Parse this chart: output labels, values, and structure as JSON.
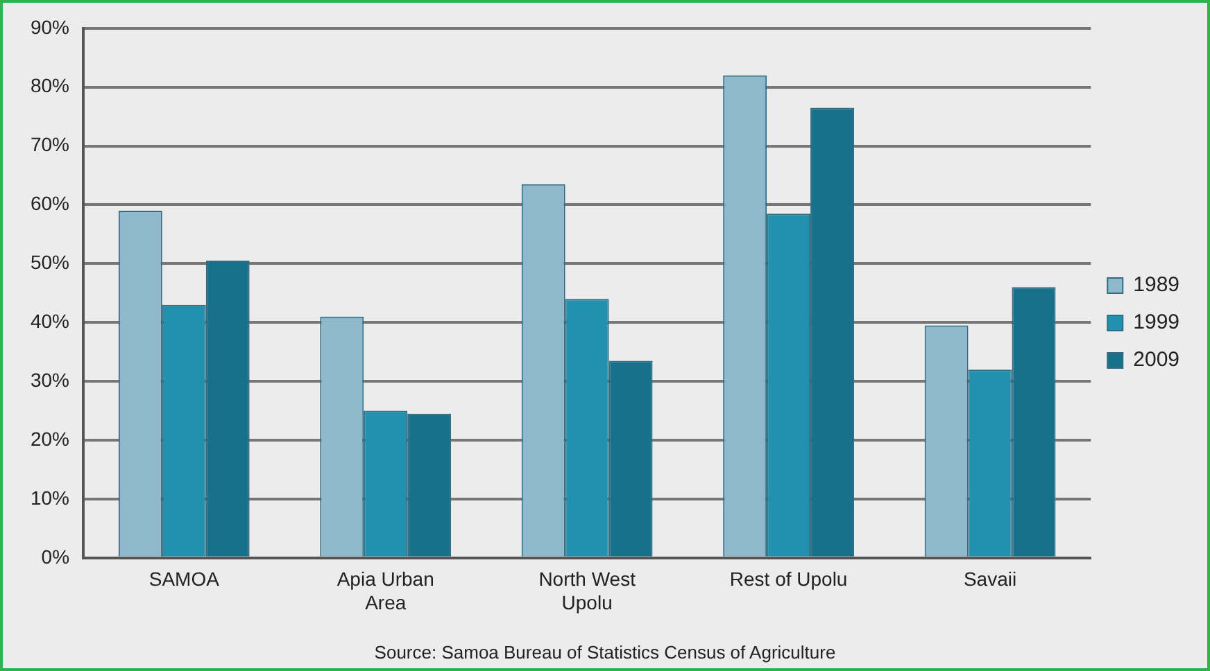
{
  "chart_data": {
    "type": "bar",
    "categories": [
      "SAMOA",
      "Apia Urban Area",
      "North West Upolu",
      "Rest of Upolu",
      "Savaii"
    ],
    "series": [
      {
        "name": "1989",
        "color": "#8fb8cc",
        "values": [
          59,
          41,
          63.5,
          82,
          39.5
        ]
      },
      {
        "name": "1999",
        "color": "#2291b0",
        "values": [
          43,
          25,
          44,
          58.5,
          32
        ]
      },
      {
        "name": "2009",
        "color": "#17718a",
        "values": [
          50.5,
          24.5,
          33.5,
          76.5,
          46
        ]
      }
    ],
    "ylim": [
      0,
      90
    ],
    "yticks": [
      {
        "value": 0,
        "label": "0%"
      },
      {
        "value": 10,
        "label": "10%"
      },
      {
        "value": 20,
        "label": "20%"
      },
      {
        "value": 30,
        "label": "30%"
      },
      {
        "value": 40,
        "label": "40%"
      },
      {
        "value": 50,
        "label": "50%"
      },
      {
        "value": 60,
        "label": "60%"
      },
      {
        "value": 70,
        "label": "70%"
      },
      {
        "value": 80,
        "label": "80%"
      },
      {
        "value": 90,
        "label": "90%"
      }
    ],
    "grid": "y",
    "legend": "right",
    "annotations": [
      "Source: Samoa Bureau of Statistics Census of Agriculture"
    ]
  }
}
